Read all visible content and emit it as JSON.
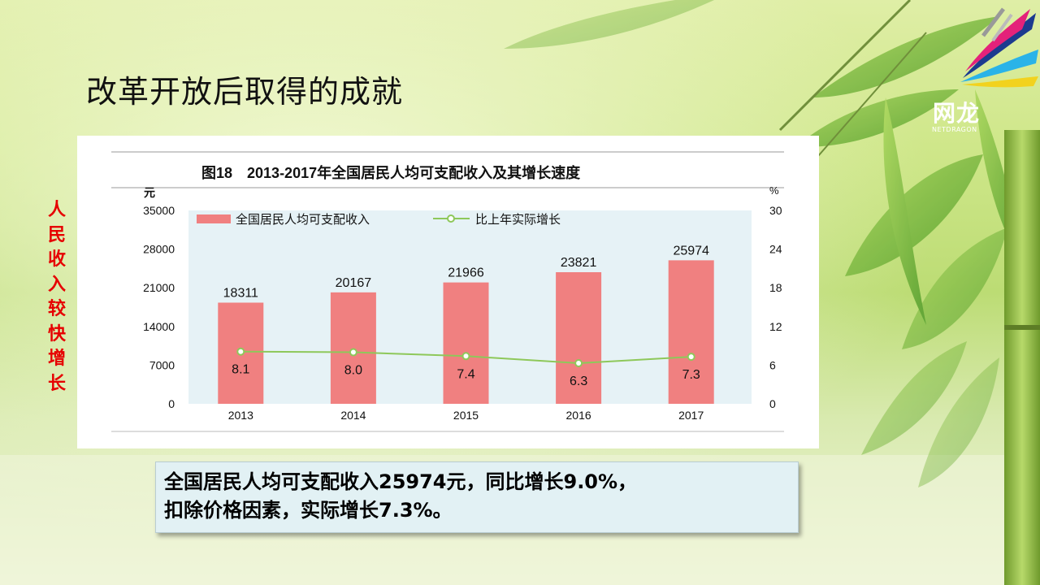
{
  "slide": {
    "title": "改革开放后取得的成就",
    "side_label": [
      "人",
      "民",
      "收",
      "入",
      "较",
      "快",
      "增",
      "长"
    ]
  },
  "logo": {
    "name_cn": "网龙",
    "name_en": "NETDRAGON"
  },
  "caption": {
    "line1": "全国居民人均可支配收入25974元，同比增长9.0%，",
    "line2": "扣除价格因素，实际增长7.3%。"
  },
  "chart_data": {
    "type": "bar",
    "title": "图18　2013-2017年全国居民人均可支配收入及其增长速度",
    "categories": [
      "2013",
      "2014",
      "2015",
      "2016",
      "2017"
    ],
    "y_left": {
      "unit": "元",
      "ticks": [
        "0",
        "7000",
        "14000",
        "21000",
        "28000",
        "35000"
      ],
      "range": [
        0,
        35000
      ]
    },
    "y_right": {
      "unit": "%",
      "ticks": [
        "0",
        "6",
        "12",
        "18",
        "24",
        "30"
      ],
      "range": [
        0,
        30
      ]
    },
    "series": [
      {
        "name": "全国居民人均可支配收入",
        "kind": "bar",
        "axis": "left",
        "color": "#f08080",
        "values": [
          18311,
          20167,
          21966,
          23821,
          25974
        ],
        "labels": [
          "18311",
          "20167",
          "21966",
          "23821",
          "25974"
        ]
      },
      {
        "name": "比上年实际增长",
        "kind": "line",
        "axis": "right",
        "color": "#8ec85a",
        "values": [
          8.1,
          8.0,
          7.4,
          6.3,
          7.3
        ],
        "labels": [
          "8.1",
          "8.0",
          "7.4",
          "6.3",
          "7.3"
        ]
      }
    ],
    "legend": "top-left",
    "plot_background": "#e6f2f6"
  }
}
